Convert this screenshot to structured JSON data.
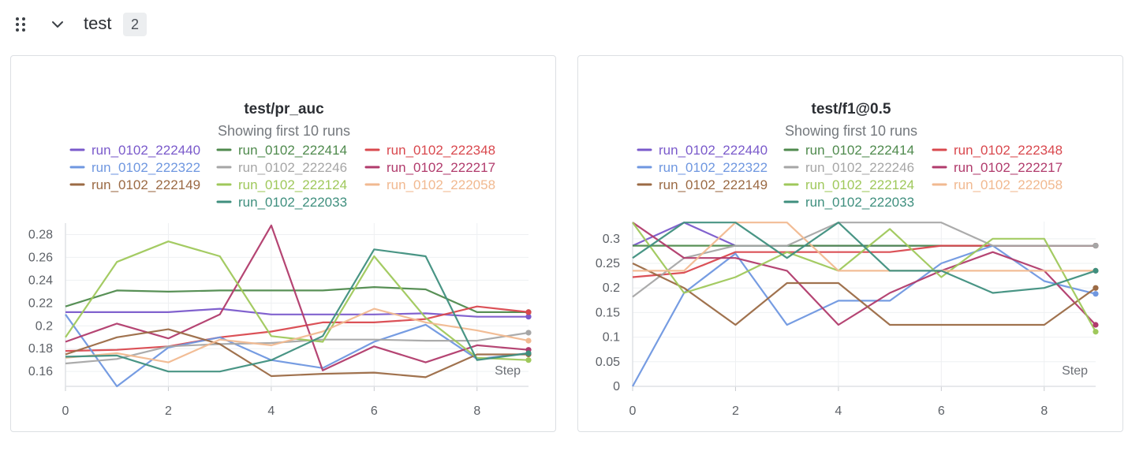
{
  "section": {
    "title": "test",
    "count": "2"
  },
  "icons": {
    "drag": "drag-handle-icon",
    "chevron": "chevron-down-icon"
  },
  "chart_data": [
    {
      "type": "line",
      "title": "test/pr_auc",
      "subtitle": "Showing first 10 runs",
      "xlabel": "Step",
      "ylabel": "",
      "x": [
        0,
        1,
        2,
        3,
        4,
        5,
        6,
        7,
        8,
        9
      ],
      "xlim": [
        0,
        9
      ],
      "ylim": [
        0.147,
        0.29
      ],
      "xticks": [
        "0",
        "2",
        "4",
        "6",
        "8"
      ],
      "yticks": [
        "0.16",
        "0.18",
        "0.2",
        "0.22",
        "0.24",
        "0.26",
        "0.28"
      ],
      "grid": true,
      "series": [
        {
          "name": "run_0102_222440",
          "color": "#7a5acb",
          "values": [
            0.212,
            0.212,
            0.212,
            0.215,
            0.21,
            0.21,
            0.21,
            0.211,
            0.208,
            0.208
          ]
        },
        {
          "name": "run_0102_222414",
          "color": "#4f8a4d",
          "values": [
            0.217,
            0.231,
            0.23,
            0.231,
            0.231,
            0.231,
            0.234,
            0.232,
            0.212,
            0.212
          ]
        },
        {
          "name": "run_0102_222348",
          "color": "#d9484e",
          "values": [
            0.178,
            0.179,
            0.182,
            0.19,
            0.195,
            0.203,
            0.203,
            0.206,
            0.217,
            0.212
          ]
        },
        {
          "name": "run_0102_222322",
          "color": "#6f97e0",
          "values": [
            0.21,
            0.147,
            0.181,
            0.19,
            0.17,
            0.163,
            0.186,
            0.201,
            0.171,
            0.176
          ]
        },
        {
          "name": "run_0102_222246",
          "color": "#a6a6a6",
          "values": [
            0.167,
            0.171,
            0.182,
            0.184,
            0.185,
            0.188,
            0.188,
            0.187,
            0.187,
            0.194
          ]
        },
        {
          "name": "run_0102_222217",
          "color": "#b13b6c",
          "values": [
            0.186,
            0.202,
            0.189,
            0.21,
            0.288,
            0.161,
            0.182,
            0.168,
            0.183,
            0.179
          ]
        },
        {
          "name": "run_0102_222149",
          "color": "#9b6a44",
          "values": [
            0.175,
            0.19,
            0.197,
            0.184,
            0.156,
            0.158,
            0.159,
            0.155,
            0.175,
            0.175
          ]
        },
        {
          "name": "run_0102_222124",
          "color": "#9fc85b",
          "values": [
            0.19,
            0.256,
            0.274,
            0.261,
            0.191,
            0.186,
            0.261,
            0.207,
            0.172,
            0.17
          ]
        },
        {
          "name": "run_0102_222058",
          "color": "#f1b990",
          "values": [
            0.172,
            0.176,
            0.168,
            0.188,
            0.183,
            0.195,
            0.215,
            0.203,
            0.196,
            0.187
          ]
        },
        {
          "name": "run_0102_222033",
          "color": "#3f8f7e",
          "values": [
            0.173,
            0.174,
            0.16,
            0.16,
            0.17,
            0.191,
            0.267,
            0.261,
            0.17,
            0.176
          ]
        }
      ]
    },
    {
      "type": "line",
      "title": "test/f1@0.5",
      "subtitle": "Showing first 10 runs",
      "xlabel": "Step",
      "ylabel": "",
      "x": [
        0,
        1,
        2,
        3,
        4,
        5,
        6,
        7,
        8,
        9
      ],
      "xlim": [
        0,
        9
      ],
      "ylim": [
        0,
        0.335
      ],
      "xticks": [
        "0",
        "2",
        "4",
        "6",
        "8"
      ],
      "yticks": [
        "0",
        "0.05",
        "0.1",
        "0.15",
        "0.2",
        "0.25",
        "0.3"
      ],
      "grid": true,
      "series": [
        {
          "name": "run_0102_222440",
          "color": "#7a5acb",
          "values": [
            0.286,
            0.333,
            0.286,
            0.286,
            0.286,
            0.286,
            0.286,
            0.286,
            0.286,
            0.286
          ]
        },
        {
          "name": "run_0102_222414",
          "color": "#4f8a4d",
          "values": [
            0.286,
            0.286,
            0.286,
            0.286,
            0.286,
            0.286,
            0.286,
            0.286,
            0.286,
            0.286
          ]
        },
        {
          "name": "run_0102_222348",
          "color": "#d9484e",
          "values": [
            0.222,
            0.231,
            0.273,
            0.273,
            0.273,
            0.273,
            0.286,
            0.286,
            0.286,
            0.286
          ]
        },
        {
          "name": "run_0102_222322",
          "color": "#6f97e0",
          "values": [
            0.0,
            0.19,
            0.27,
            0.125,
            0.174,
            0.174,
            0.25,
            0.286,
            0.214,
            0.188
          ]
        },
        {
          "name": "run_0102_222246",
          "color": "#a6a6a6",
          "values": [
            0.182,
            0.261,
            0.286,
            0.286,
            0.333,
            0.333,
            0.333,
            0.286,
            0.286,
            0.286
          ]
        },
        {
          "name": "run_0102_222217",
          "color": "#b13b6c",
          "values": [
            0.333,
            0.261,
            0.261,
            0.235,
            0.125,
            0.19,
            0.235,
            0.273,
            0.235,
            0.125
          ]
        },
        {
          "name": "run_0102_222149",
          "color": "#9b6a44",
          "values": [
            0.25,
            0.2,
            0.125,
            0.21,
            0.21,
            0.125,
            0.125,
            0.125,
            0.125,
            0.2
          ]
        },
        {
          "name": "run_0102_222124",
          "color": "#9fc85b",
          "values": [
            0.333,
            0.19,
            0.222,
            0.273,
            0.235,
            0.32,
            0.222,
            0.3,
            0.3,
            0.111
          ]
        },
        {
          "name": "run_0102_222058",
          "color": "#f1b990",
          "values": [
            0.235,
            0.235,
            0.333,
            0.333,
            0.235,
            0.235,
            0.235,
            0.235,
            0.235,
            0.235
          ]
        },
        {
          "name": "run_0102_222033",
          "color": "#3f8f7e",
          "values": [
            0.261,
            0.333,
            0.333,
            0.261,
            0.333,
            0.235,
            0.235,
            0.19,
            0.2,
            0.235
          ]
        }
      ]
    }
  ]
}
